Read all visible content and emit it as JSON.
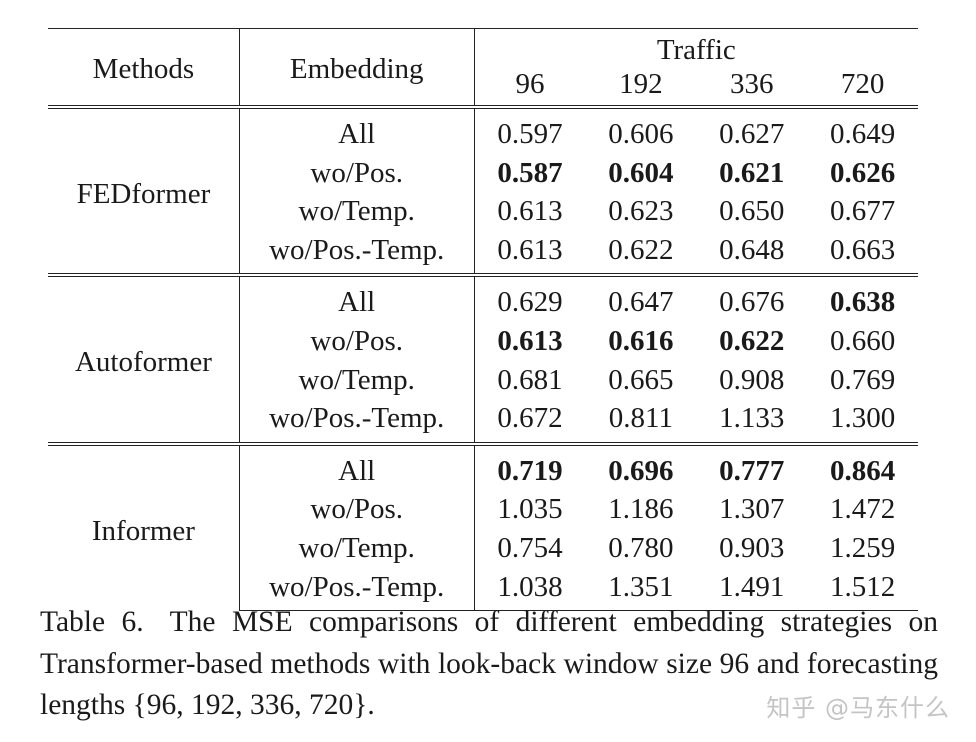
{
  "table": {
    "headers": {
      "methods": "Methods",
      "embedding": "Embedding",
      "dataset": "Traffic",
      "horizons": [
        "96",
        "192",
        "336",
        "720"
      ]
    },
    "groups": [
      {
        "method": "FEDformer",
        "rows": [
          {
            "embedding": "All",
            "values": [
              "0.597",
              "0.606",
              "0.627",
              "0.649"
            ],
            "bold": [
              false,
              false,
              false,
              false
            ]
          },
          {
            "embedding": "wo/Pos.",
            "values": [
              "0.587",
              "0.604",
              "0.621",
              "0.626"
            ],
            "bold": [
              true,
              true,
              true,
              true
            ]
          },
          {
            "embedding": "wo/Temp.",
            "values": [
              "0.613",
              "0.623",
              "0.650",
              "0.677"
            ],
            "bold": [
              false,
              false,
              false,
              false
            ]
          },
          {
            "embedding": "wo/Pos.-Temp.",
            "values": [
              "0.613",
              "0.622",
              "0.648",
              "0.663"
            ],
            "bold": [
              false,
              false,
              false,
              false
            ]
          }
        ]
      },
      {
        "method": "Autoformer",
        "rows": [
          {
            "embedding": "All",
            "values": [
              "0.629",
              "0.647",
              "0.676",
              "0.638"
            ],
            "bold": [
              false,
              false,
              false,
              true
            ]
          },
          {
            "embedding": "wo/Pos.",
            "values": [
              "0.613",
              "0.616",
              "0.622",
              "0.660"
            ],
            "bold": [
              true,
              true,
              true,
              false
            ]
          },
          {
            "embedding": "wo/Temp.",
            "values": [
              "0.681",
              "0.665",
              "0.908",
              "0.769"
            ],
            "bold": [
              false,
              false,
              false,
              false
            ]
          },
          {
            "embedding": "wo/Pos.-Temp.",
            "values": [
              "0.672",
              "0.811",
              "1.133",
              "1.300"
            ],
            "bold": [
              false,
              false,
              false,
              false
            ]
          }
        ]
      },
      {
        "method": "Informer",
        "rows": [
          {
            "embedding": "All",
            "values": [
              "0.719",
              "0.696",
              "0.777",
              "0.864"
            ],
            "bold": [
              true,
              true,
              true,
              true
            ]
          },
          {
            "embedding": "wo/Pos.",
            "values": [
              "1.035",
              "1.186",
              "1.307",
              "1.472"
            ],
            "bold": [
              false,
              false,
              false,
              false
            ]
          },
          {
            "embedding": "wo/Temp.",
            "values": [
              "0.754",
              "0.780",
              "0.903",
              "1.259"
            ],
            "bold": [
              false,
              false,
              false,
              false
            ]
          },
          {
            "embedding": "wo/Pos.-Temp.",
            "values": [
              "1.038",
              "1.351",
              "1.491",
              "1.512"
            ],
            "bold": [
              false,
              false,
              false,
              false
            ]
          }
        ]
      }
    ]
  },
  "caption": {
    "label": "Table 6.",
    "text": "The MSE comparisons of different embedding strategies on Transformer-based methods with look-back window size 96 and forecasting lengths {96, 192, 336, 720}."
  },
  "watermark": "知乎 @马东什么"
}
